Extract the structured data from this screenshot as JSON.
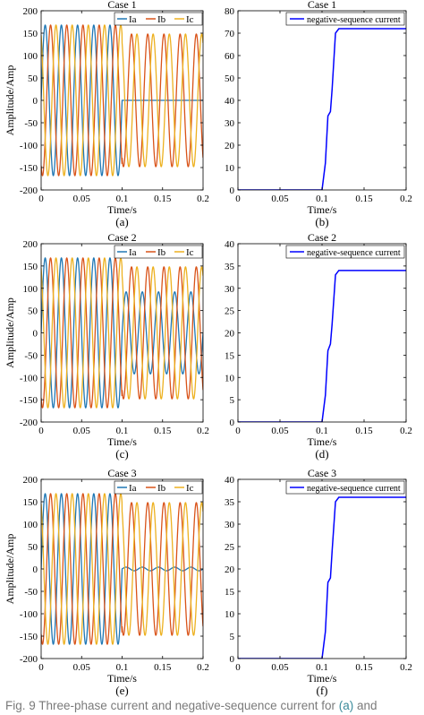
{
  "caption": {
    "lead": "Fig. 9",
    "text": "   Three-phase current and negative-sequence current for ",
    "link1": "(a)",
    "mid": " and"
  },
  "colors": {
    "Ia": "#1f77b4",
    "Ib": "#d95319",
    "Ic": "#edb120",
    "neg": "#0000ff"
  },
  "chart_data": [
    {
      "type": "line",
      "title": "Case 1",
      "panel_label": "(a)",
      "xlabel": "Time/s",
      "ylabel": "Amplitude/Amp",
      "xlim": [
        0,
        0.2
      ],
      "ylim": [
        -200,
        200
      ],
      "xticks": [
        0,
        0.05,
        0.1,
        0.15,
        0.2
      ],
      "yticks": [
        -200,
        -150,
        -100,
        -50,
        0,
        50,
        100,
        150,
        200
      ],
      "grid": false,
      "legend": "top-right",
      "signal": {
        "frequency_hz": 50,
        "fault_time_s": 0.1
      },
      "series": [
        {
          "name": "Ia",
          "amp_before": 168,
          "amp_after": 0,
          "phase_deg": 0
        },
        {
          "name": "Ib",
          "amp_before": 168,
          "amp_after": 148,
          "phase_deg": -120
        },
        {
          "name": "Ic",
          "amp_before": 168,
          "amp_after": 148,
          "phase_deg": 120
        }
      ]
    },
    {
      "type": "line",
      "title": "Case 1",
      "panel_label": "(b)",
      "xlabel": "Time/s",
      "ylabel": "",
      "xlim": [
        0,
        0.2
      ],
      "ylim": [
        0,
        80
      ],
      "xticks": [
        0,
        0.05,
        0.1,
        0.15,
        0.2
      ],
      "yticks": [
        0,
        10,
        20,
        30,
        40,
        50,
        60,
        70,
        80
      ],
      "grid": false,
      "legend": "top-right",
      "series": [
        {
          "name": "negative-sequence current",
          "x": [
            0,
            0.1,
            0.104,
            0.107,
            0.11,
            0.112,
            0.116,
            0.12,
            0.2
          ],
          "y": [
            0,
            0,
            12,
            33,
            35,
            45,
            70,
            72,
            72
          ]
        }
      ]
    },
    {
      "type": "line",
      "title": "Case 2",
      "panel_label": "(c)",
      "xlabel": "Time/s",
      "ylabel": "Amplitude/Amp",
      "xlim": [
        0,
        0.2
      ],
      "ylim": [
        -200,
        200
      ],
      "xticks": [
        0,
        0.05,
        0.1,
        0.15,
        0.2
      ],
      "yticks": [
        -200,
        -150,
        -100,
        -50,
        0,
        50,
        100,
        150,
        200
      ],
      "grid": false,
      "legend": "top-right",
      "signal": {
        "frequency_hz": 50,
        "fault_time_s": 0.1
      },
      "series": [
        {
          "name": "Ia",
          "amp_before": 168,
          "amp_after": 92,
          "phase_deg": 0
        },
        {
          "name": "Ib",
          "amp_before": 168,
          "amp_after": 148,
          "phase_deg": -120
        },
        {
          "name": "Ic",
          "amp_before": 168,
          "amp_after": 148,
          "phase_deg": 120
        }
      ]
    },
    {
      "type": "line",
      "title": "Case 2",
      "panel_label": "(d)",
      "xlabel": "Time/s",
      "ylabel": "",
      "xlim": [
        0,
        0.2
      ],
      "ylim": [
        0,
        40
      ],
      "xticks": [
        0,
        0.05,
        0.1,
        0.15,
        0.2
      ],
      "yticks": [
        0,
        5,
        10,
        15,
        20,
        25,
        30,
        35,
        40
      ],
      "grid": false,
      "legend": "top-right",
      "series": [
        {
          "name": "negative-sequence current",
          "x": [
            0,
            0.1,
            0.104,
            0.107,
            0.11,
            0.112,
            0.116,
            0.12,
            0.2
          ],
          "y": [
            0,
            0,
            6,
            16,
            17.5,
            22,
            33,
            34,
            34
          ]
        }
      ]
    },
    {
      "type": "line",
      "title": "Case 3",
      "panel_label": "(e)",
      "xlabel": "Time/s",
      "ylabel": "Amplitude/Amp",
      "xlim": [
        0,
        0.2
      ],
      "ylim": [
        -200,
        200
      ],
      "xticks": [
        0,
        0.05,
        0.1,
        0.15,
        0.2
      ],
      "yticks": [
        -200,
        -150,
        -100,
        -50,
        0,
        50,
        100,
        150,
        200
      ],
      "grid": false,
      "legend": "top-right",
      "signal": {
        "frequency_hz": 50,
        "fault_time_s": 0.1
      },
      "series": [
        {
          "name": "Ia",
          "amp_before": 168,
          "amp_after": 4,
          "phase_deg": 0
        },
        {
          "name": "Ib",
          "amp_before": 168,
          "amp_after": 148,
          "phase_deg": -120
        },
        {
          "name": "Ic",
          "amp_before": 168,
          "amp_after": 148,
          "phase_deg": 120
        }
      ]
    },
    {
      "type": "line",
      "title": "Case 3",
      "panel_label": "(f)",
      "xlabel": "Time/s",
      "ylabel": "",
      "xlim": [
        0,
        0.2
      ],
      "ylim": [
        0,
        40
      ],
      "xticks": [
        0,
        0.05,
        0.1,
        0.15,
        0.2
      ],
      "yticks": [
        0,
        5,
        10,
        15,
        20,
        25,
        30,
        35,
        40
      ],
      "grid": false,
      "legend": "top-right",
      "series": [
        {
          "name": "negative-sequence current",
          "x": [
            0,
            0.1,
            0.104,
            0.107,
            0.11,
            0.112,
            0.116,
            0.12,
            0.2
          ],
          "y": [
            0,
            0,
            6,
            17,
            18,
            24,
            35,
            36,
            36
          ]
        }
      ]
    }
  ]
}
